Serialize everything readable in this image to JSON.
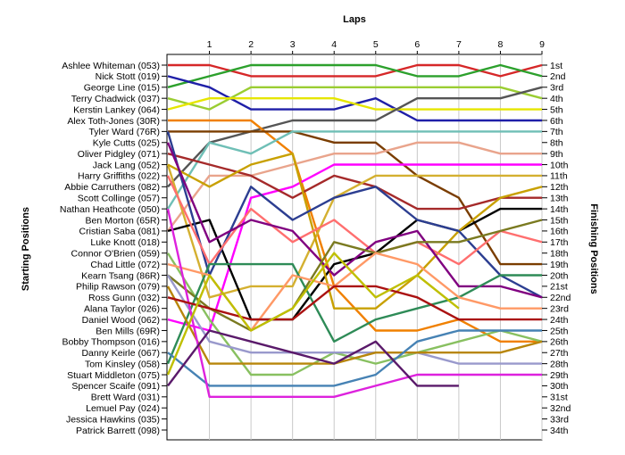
{
  "chart_data": {
    "type": "line",
    "title": "Laps",
    "ylabel_left": "Starting Positions",
    "ylabel_right": "Finishing Positions",
    "x": [
      0,
      1,
      2,
      3,
      4,
      5,
      6,
      7,
      8,
      9
    ],
    "xticks": [
      "1",
      "2",
      "3",
      "4",
      "5",
      "6",
      "7",
      "8",
      "9"
    ],
    "ylim": [
      1,
      34
    ],
    "y_inverted": true,
    "grid": "vertical",
    "starting_labels": [
      "Ashlee Whiteman (053)",
      "Nick Stott (019)",
      "George Line (015)",
      "Terry Chadwick (037)",
      "Kerstin Lankey (064)",
      "Alex Toth-Jones (30R)",
      "Tyler Ward (76R)",
      "Kyle Cutts (025)",
      "Oliver Pidgley (071)",
      "Jack Lang (052)",
      "Harry Griffiths (022)",
      "Abbie Carruthers (082)",
      "Scott Collinge (057)",
      "Nathan Heathcote (050)",
      "Ben Morton (65R)",
      "Cristian Saba (081)",
      "Luke Knott (018)",
      "Connor O'Brien (059)",
      "Chad Little (072)",
      "Kearn Tsang (86R)",
      "Philip Rawson (079)",
      "Ross Gunn (032)",
      "Alana Taylor (026)",
      "Daniel Wood (062)",
      "Ben Mills (69R)",
      "Bobby Thompson (016)",
      "Danny Keirle (067)",
      "Tom Kinsley (058)",
      "Stuart Middleton (075)",
      "Spencer Scaife (091)",
      "Brett Ward (031)",
      "Lemuel Pay (024)",
      "Jessica Hawkins (035)",
      "Patrick Barrett (098)"
    ],
    "finishing_labels": [
      "1st",
      "2nd",
      "3rd",
      "4th",
      "5th",
      "6th",
      "7th",
      "8th",
      "9th",
      "10th",
      "11th",
      "12th",
      "13th",
      "14th",
      "15th",
      "16th",
      "17th",
      "18th",
      "19th",
      "20th",
      "21st",
      "22nd",
      "23rd",
      "24th",
      "25th",
      "26th",
      "27th",
      "28th",
      "29th",
      "30th",
      "31st",
      "32nd",
      "33rd",
      "34th"
    ],
    "series": [
      {
        "color": "#d62728",
        "positions": [
          1,
          1,
          2,
          2,
          2,
          2,
          1,
          1,
          2,
          1
        ]
      },
      {
        "color": "#2ca02c",
        "positions": [
          3,
          2,
          1,
          1,
          1,
          1,
          2,
          2,
          1,
          2
        ]
      },
      {
        "color": "#1f1fa8",
        "positions": [
          2,
          3,
          5,
          5,
          5,
          4,
          6,
          6,
          6,
          6
        ]
      },
      {
        "color": "#9acd32",
        "positions": [
          4,
          5,
          3,
          3,
          3,
          3,
          3,
          3,
          3,
          4
        ]
      },
      {
        "color": "#e6e600",
        "positions": [
          5,
          4,
          4,
          4,
          4,
          5,
          5,
          5,
          5,
          5
        ]
      },
      {
        "color": "#555555",
        "positions": [
          12,
          8,
          7,
          6,
          6,
          6,
          4,
          4,
          4,
          3
        ]
      },
      {
        "color": "#f08000",
        "positions": [
          6,
          6,
          6,
          9,
          21,
          25,
          25,
          24,
          26,
          26
        ]
      },
      {
        "color": "#7a3d00",
        "positions": [
          7,
          7,
          7,
          7,
          8,
          8,
          11,
          13,
          19,
          19
        ]
      },
      {
        "color": "#6fbfb6",
        "positions": [
          14,
          8,
          9,
          7,
          7,
          7,
          7,
          7,
          7,
          7
        ]
      },
      {
        "color": "#e9a48c",
        "positions": [
          16,
          11,
          11,
          10,
          9,
          9,
          8,
          8,
          9,
          9
        ]
      },
      {
        "color": "#ff00ff",
        "positions": [
          24,
          25,
          13,
          12,
          10,
          10,
          10,
          10,
          10,
          10
        ]
      },
      {
        "color": "#a52a2a",
        "positions": [
          9,
          10,
          11,
          13,
          11,
          12,
          14,
          14,
          13,
          13
        ]
      },
      {
        "color": "#d4b030",
        "positions": [
          10,
          22,
          21,
          21,
          13,
          11,
          11,
          11,
          11,
          11
        ]
      },
      {
        "color": "#000000",
        "positions": [
          16,
          15,
          24,
          24,
          19,
          18,
          15,
          16,
          14,
          14
        ]
      },
      {
        "color": "#c8a000",
        "positions": [
          10,
          12,
          10,
          9,
          23,
          23,
          20,
          16,
          13,
          12
        ]
      },
      {
        "color": "#2c3e91",
        "positions": [
          7,
          20,
          12,
          15,
          13,
          12,
          15,
          16,
          20,
          22
        ]
      },
      {
        "color": "#ff6f6f",
        "positions": [
          11,
          19,
          14,
          17,
          15,
          18,
          17,
          19,
          16,
          17
        ]
      },
      {
        "color": "#88c060",
        "positions": [
          18,
          24,
          29,
          29,
          27,
          28,
          27,
          26,
          25,
          26
        ]
      },
      {
        "color": "#800080",
        "positions": [
          8,
          17,
          15,
          16,
          20,
          17,
          16,
          21,
          21,
          22
        ]
      },
      {
        "color": "#7a7a20",
        "positions": [
          20,
          23,
          25,
          23,
          17,
          18,
          17,
          17,
          16,
          15
        ]
      },
      {
        "color": "#2e8b57",
        "positions": [
          28,
          19,
          19,
          19,
          26,
          24,
          23,
          22,
          20,
          20
        ]
      },
      {
        "color": "#ff9966",
        "positions": [
          19,
          20,
          25,
          20,
          21,
          18,
          19,
          22,
          23,
          23
        ]
      },
      {
        "color": "#9999cc",
        "positions": [
          20,
          26,
          27,
          27,
          27,
          27,
          27,
          28,
          28,
          28
        ]
      },
      {
        "color": "#b8860b",
        "positions": [
          21,
          28,
          28,
          28,
          28,
          27,
          27,
          27,
          27,
          26
        ]
      },
      {
        "color": "#4682b4",
        "positions": [
          27,
          30,
          30,
          30,
          30,
          29,
          26,
          25,
          25,
          25
        ]
      },
      {
        "color": "#dd22dd",
        "positions": [
          14,
          31,
          31,
          31,
          31,
          30,
          29,
          29,
          29,
          29
        ]
      },
      {
        "color": "#aa1111",
        "positions": [
          22,
          23,
          24,
          24,
          21,
          21,
          22,
          24,
          24,
          24
        ]
      },
      {
        "color": "#5a1a6a",
        "positions": [
          30,
          25,
          26,
          27,
          28,
          26,
          30,
          30
        ]
      },
      {
        "color": "#bfbf00",
        "positions": [
          29,
          20,
          25,
          23,
          18,
          22,
          20,
          23
        ]
      }
    ]
  }
}
